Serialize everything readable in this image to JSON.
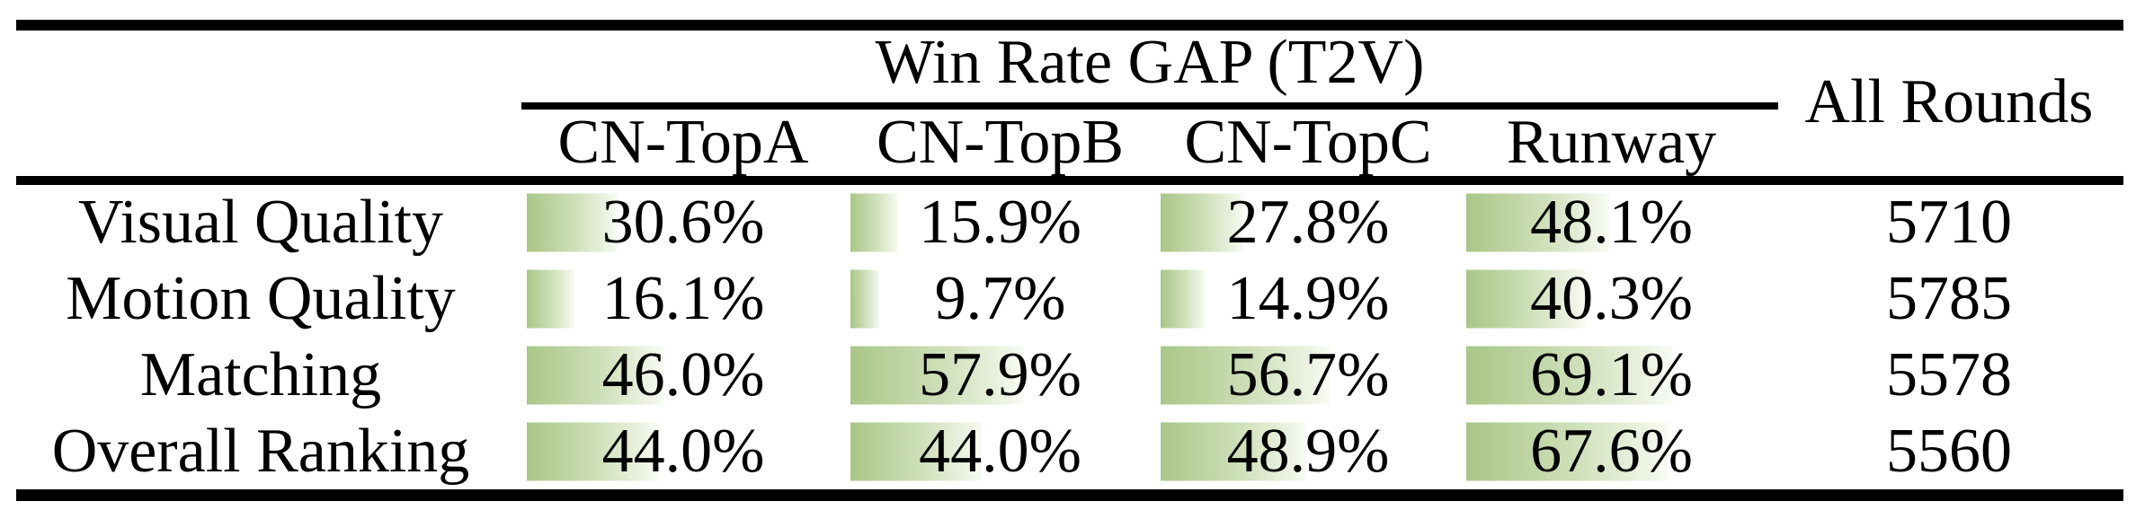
{
  "table": {
    "group_header": "Win Rate GAP (T2V)",
    "all_rounds_header": "All Rounds",
    "model_columns": [
      "CN-TopA",
      "CN-TopB",
      "CN-TopC",
      "Runway"
    ],
    "rows": [
      {
        "label": "Visual Quality",
        "cells": [
          {
            "pct": 30.6,
            "text": "30.6%"
          },
          {
            "pct": 15.9,
            "text": "15.9%"
          },
          {
            "pct": 27.8,
            "text": "27.8%"
          },
          {
            "pct": 48.1,
            "text": "48.1%"
          }
        ],
        "all_rounds": "5710"
      },
      {
        "label": "Motion Quality",
        "cells": [
          {
            "pct": 16.1,
            "text": "16.1%"
          },
          {
            "pct": 9.7,
            "text": "9.7%"
          },
          {
            "pct": 14.9,
            "text": "14.9%"
          },
          {
            "pct": 40.3,
            "text": "40.3%"
          }
        ],
        "all_rounds": "5785"
      },
      {
        "label": "Matching",
        "cells": [
          {
            "pct": 46.0,
            "text": "46.0%"
          },
          {
            "pct": 57.9,
            "text": "57.9%"
          },
          {
            "pct": 56.7,
            "text": "56.7%"
          },
          {
            "pct": 69.1,
            "text": "69.1%"
          }
        ],
        "all_rounds": "5578"
      },
      {
        "label": "Overall Ranking",
        "cells": [
          {
            "pct": 44.0,
            "text": "44.0%"
          },
          {
            "pct": 44.0,
            "text": "44.0%"
          },
          {
            "pct": 48.9,
            "text": "48.9%"
          },
          {
            "pct": 67.6,
            "text": "67.6%"
          }
        ],
        "all_rounds": "5560"
      }
    ]
  },
  "chart_data": {
    "type": "table",
    "title": "Win Rate GAP (T2V)",
    "categories": [
      "Visual Quality",
      "Motion Quality",
      "Matching",
      "Overall Ranking"
    ],
    "series": [
      {
        "name": "CN-TopA",
        "values": [
          30.6,
          16.1,
          46.0,
          44.0
        ],
        "unit": "%"
      },
      {
        "name": "CN-TopB",
        "values": [
          15.9,
          9.7,
          57.9,
          44.0
        ],
        "unit": "%"
      },
      {
        "name": "CN-TopC",
        "values": [
          27.8,
          14.9,
          56.7,
          48.9
        ],
        "unit": "%"
      },
      {
        "name": "Runway",
        "values": [
          48.1,
          40.3,
          69.1,
          67.6
        ],
        "unit": "%"
      },
      {
        "name": "All Rounds",
        "values": [
          5710,
          5785,
          5578,
          5560
        ],
        "unit": "rounds"
      }
    ],
    "layout_hints": {
      "in_cell_bars": true,
      "bar_full_scale_pct": 100
    }
  },
  "colors": {
    "background": "#ffffff",
    "text": "#000000",
    "rule": "#000000",
    "bar_gradient_start": "#a9c687",
    "bar_gradient_mid": "#cfe0ba",
    "bar_gradient_end": "#eef4e5"
  }
}
